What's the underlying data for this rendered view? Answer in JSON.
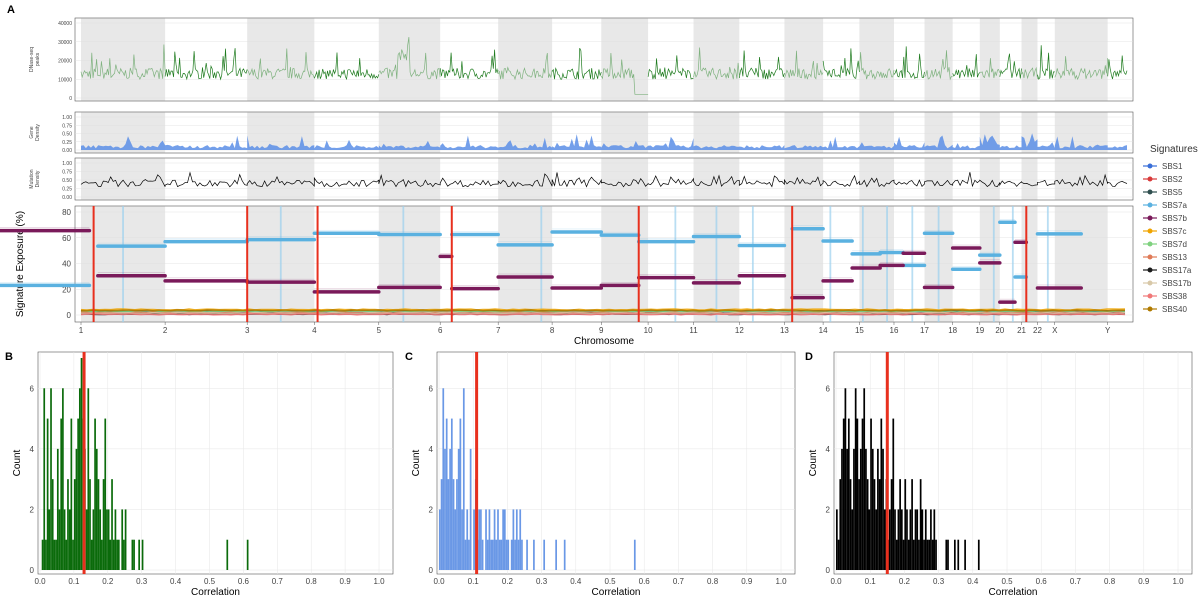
{
  "chart_data": [
    {
      "panel": "A",
      "type": "line",
      "tracks": [
        {
          "id": "dnase",
          "ylabel": "DNase-seq peaks",
          "yticks": [
            0,
            10000,
            20000,
            30000,
            40000
          ],
          "ylim": [
            0,
            45000
          ],
          "color": "#1e7b1e",
          "alt_color": "#7fb27f"
        },
        {
          "id": "gene",
          "ylabel": "Gene Density",
          "yticks": [
            "0.00",
            "0.25",
            "0.50",
            "0.75",
            "1.00"
          ],
          "ylim": [
            0,
            1
          ],
          "color": "#5b8ee6"
        },
        {
          "id": "mut",
          "ylabel": "Mutation Density",
          "yticks": [
            "0.00",
            "0.25",
            "0.50",
            "0.75",
            "1.00"
          ],
          "ylim": [
            0,
            1
          ],
          "color": "#000000"
        }
      ],
      "main": {
        "type": "scatter",
        "xlabel": "Chromosome",
        "ylabel": "Signature Exposure (%)",
        "ylim": [
          0,
          80
        ],
        "yticks": [
          0,
          20,
          40,
          60,
          80
        ],
        "chromosomes": [
          "1",
          "2",
          "3",
          "4",
          "5",
          "6",
          "7",
          "8",
          "9",
          "10",
          "11",
          "12",
          "13",
          "14",
          "15",
          "16",
          "17",
          "18",
          "19",
          "20",
          "21",
          "22",
          "X",
          "Y"
        ],
        "chrom_sizes": [
          248,
          242,
          198,
          190,
          181,
          171,
          159,
          145,
          138,
          134,
          135,
          133,
          114,
          107,
          102,
          90,
          83,
          80,
          59,
          64,
          47,
          51,
          156,
          57
        ],
        "red_breakpoints": [
          1.15,
          3.0,
          4.05,
          6.2,
          9.8,
          13.2,
          21.3
        ],
        "blue_breakpoints": [
          1.5,
          3.5,
          5.4,
          7.8,
          10.6,
          11.5,
          12.3,
          14.2,
          15.1,
          15.8,
          16.6,
          17.5,
          19.7,
          20.6,
          22.6
        ],
        "sbs7a_segments": [
          [
            0.9,
            1.1,
            23
          ],
          [
            1.2,
            2.0,
            53.5
          ],
          [
            2.0,
            3.0,
            57
          ],
          [
            3.0,
            4.0,
            58.5
          ],
          [
            4.0,
            5.0,
            63.5
          ],
          [
            5.0,
            6.0,
            62.5
          ],
          [
            6.2,
            7.0,
            62.5
          ],
          [
            7.0,
            8.0,
            54.5
          ],
          [
            8.0,
            9.0,
            64.5
          ],
          [
            9.0,
            9.8,
            62
          ],
          [
            9.8,
            11.0,
            57
          ],
          [
            11.0,
            12.0,
            61
          ],
          [
            12.0,
            13.0,
            54
          ],
          [
            13.2,
            14.0,
            67
          ],
          [
            14.0,
            14.8,
            57.5
          ],
          [
            14.8,
            15.6,
            47.5
          ],
          [
            15.6,
            16.3,
            48.5
          ],
          [
            16.3,
            17.0,
            38.5
          ],
          [
            17.0,
            18.0,
            63.5
          ],
          [
            18.0,
            19.0,
            35.5
          ],
          [
            19.0,
            20.0,
            46.5
          ],
          [
            20.0,
            20.7,
            72
          ],
          [
            20.7,
            21.3,
            29.5
          ],
          [
            22.0,
            23.5,
            63
          ]
        ],
        "sbs7b_segments": [
          [
            0.9,
            1.1,
            65.5
          ],
          [
            1.2,
            2.0,
            30.5
          ],
          [
            2.0,
            3.0,
            26.5
          ],
          [
            3.0,
            4.0,
            25.5
          ],
          [
            4.0,
            5.0,
            18
          ],
          [
            5.0,
            6.0,
            21.5
          ],
          [
            6.0,
            6.2,
            45.5
          ],
          [
            6.2,
            7.0,
            20.5
          ],
          [
            7.0,
            8.0,
            29.5
          ],
          [
            8.0,
            9.0,
            21
          ],
          [
            9.0,
            9.8,
            23
          ],
          [
            9.8,
            11.0,
            29
          ],
          [
            11.0,
            12.0,
            25
          ],
          [
            12.0,
            13.0,
            30.5
          ],
          [
            13.2,
            14.0,
            13.5
          ],
          [
            14.0,
            14.8,
            26.5
          ],
          [
            14.8,
            15.6,
            36.5
          ],
          [
            15.6,
            16.3,
            38.5
          ],
          [
            16.3,
            17.0,
            48
          ],
          [
            17.0,
            18.0,
            21.5
          ],
          [
            18.0,
            19.0,
            52
          ],
          [
            19.0,
            20.0,
            40.5
          ],
          [
            20.0,
            20.7,
            10
          ],
          [
            20.7,
            21.3,
            56.5
          ],
          [
            22.0,
            23.5,
            21
          ]
        ],
        "background": [
          {
            "name": "SBS1",
            "level": 2.0,
            "color": "#3a6fd8"
          },
          {
            "name": "SBS2",
            "level": 1.0,
            "color": "#d83a3a"
          },
          {
            "name": "SBS5",
            "level": 3.2,
            "color": "#2f4f4f"
          },
          {
            "name": "SBS7c",
            "level": 4.2,
            "color": "#f0a400"
          },
          {
            "name": "SBS7d",
            "level": 2.6,
            "color": "#7fd17f"
          },
          {
            "name": "SBS13",
            "level": 1.8,
            "color": "#e07b58"
          },
          {
            "name": "SBS17a",
            "level": 0.8,
            "color": "#1b1b1b"
          },
          {
            "name": "SBS17b",
            "level": 1.4,
            "color": "#d8c8a8"
          },
          {
            "name": "SBS38",
            "level": 0.5,
            "color": "#f07878"
          },
          {
            "name": "SBS40",
            "level": 3.6,
            "color": "#b07a00"
          }
        ]
      },
      "legend": {
        "title": "Signatures",
        "items": [
          {
            "name": "SBS1",
            "color": "#3a6fd8"
          },
          {
            "name": "SBS2",
            "color": "#d83a3a"
          },
          {
            "name": "SBS5",
            "color": "#2f4f4f"
          },
          {
            "name": "SBS7a",
            "color": "#5ab1e0"
          },
          {
            "name": "SBS7b",
            "color": "#7a1a5a"
          },
          {
            "name": "SBS7c",
            "color": "#f0a400"
          },
          {
            "name": "SBS7d",
            "color": "#7fd17f"
          },
          {
            "name": "SBS13",
            "color": "#e07b58"
          },
          {
            "name": "SBS17a",
            "color": "#1b1b1b"
          },
          {
            "name": "SBS17b",
            "color": "#d8c8a8"
          },
          {
            "name": "SBS38",
            "color": "#f07878"
          },
          {
            "name": "SBS40",
            "color": "#b07a00"
          }
        ],
        "placement": "right"
      }
    },
    {
      "panel": "B",
      "type": "bar",
      "xlabel": "Correlation",
      "ylabel": "Count",
      "xlim": [
        0,
        1.0
      ],
      "ylim": [
        0,
        7
      ],
      "xticks": [
        "0.0",
        "0.1",
        "0.2",
        "0.3",
        "0.4",
        "0.5",
        "0.6",
        "0.7",
        "0.8",
        "0.9",
        "1.0"
      ],
      "yticks": [
        0,
        2,
        4,
        6
      ],
      "bin_width": 0.005,
      "bins_start": 0.005,
      "counts": [
        1,
        6,
        1,
        5,
        2,
        6,
        3,
        1,
        1,
        4,
        2,
        5,
        6,
        2,
        1,
        3,
        2,
        5,
        1,
        3,
        4,
        5,
        6,
        7,
        5,
        4,
        2,
        6,
        3,
        1,
        2,
        5,
        4,
        3,
        2,
        1,
        3,
        5,
        2,
        2,
        1,
        3,
        1,
        2,
        1,
        1,
        0,
        2,
        1,
        2,
        0,
        0,
        0,
        1,
        1,
        0,
        0,
        1,
        0,
        1,
        0,
        0,
        0,
        0,
        0,
        0,
        0,
        0,
        0,
        0,
        0,
        0,
        0,
        0,
        0,
        0,
        0,
        0,
        0,
        0,
        0,
        0,
        0,
        0,
        0,
        0,
        0,
        0,
        0,
        0,
        0,
        0,
        0,
        0,
        0,
        0,
        0,
        0,
        0,
        0,
        0,
        0,
        0,
        0,
        0,
        0,
        0,
        0,
        0,
        1,
        0,
        0,
        0,
        0,
        0,
        0,
        0,
        0,
        0,
        0,
        0,
        1
      ],
      "marker": 0.13,
      "color": "#0b6b0b",
      "marker_color": "#e8301e"
    },
    {
      "panel": "C",
      "type": "bar",
      "xlabel": "Correlation",
      "ylabel": "Count",
      "xlim": [
        0,
        1.0
      ],
      "ylim": [
        0,
        7
      ],
      "xticks": [
        "0.0",
        "0.1",
        "0.2",
        "0.3",
        "0.4",
        "0.5",
        "0.6",
        "0.7",
        "0.8",
        "0.9",
        "1.0"
      ],
      "yticks": [
        0,
        2,
        4,
        6
      ],
      "bin_width": 0.005,
      "bins_start": 0.0,
      "counts": [
        2,
        3,
        6,
        4,
        5,
        3,
        4,
        5,
        3,
        2,
        3,
        4,
        5,
        2,
        6,
        1,
        2,
        1,
        4,
        0,
        2,
        3,
        1,
        2,
        2,
        1,
        0,
        2,
        1,
        2,
        1,
        1,
        2,
        1,
        2,
        1,
        1,
        2,
        2,
        1,
        1,
        0,
        1,
        2,
        1,
        2,
        1,
        2,
        1,
        0,
        0,
        1,
        0,
        0,
        0,
        1,
        0,
        0,
        0,
        0,
        0,
        1,
        0,
        0,
        0,
        0,
        0,
        0,
        1,
        0,
        0,
        0,
        0,
        1,
        0,
        0,
        0,
        0,
        0,
        0,
        0,
        0,
        0,
        0,
        0,
        0,
        0,
        0,
        0,
        0,
        0,
        0,
        0,
        0,
        0,
        0,
        0,
        0,
        0,
        0,
        0,
        0,
        0,
        0,
        0,
        0,
        0,
        0,
        0,
        0,
        0,
        0,
        0,
        0,
        1
      ],
      "marker": 0.11,
      "color": "#6a98e6",
      "marker_color": "#e8301e"
    },
    {
      "panel": "D",
      "type": "bar",
      "xlabel": "Correlation",
      "ylabel": "Count",
      "xlim": [
        0,
        1.0
      ],
      "ylim": [
        0,
        7
      ],
      "xticks": [
        "0.0",
        "0.1",
        "0.2",
        "0.3",
        "0.4",
        "0.5",
        "0.6",
        "0.7",
        "0.8",
        "0.9",
        "1.0"
      ],
      "yticks": [
        0,
        2,
        4,
        6
      ],
      "bin_width": 0.005,
      "bins_start": 0.0,
      "counts": [
        2,
        1,
        3,
        4,
        5,
        6,
        4,
        5,
        3,
        2,
        4,
        6,
        5,
        3,
        4,
        5,
        6,
        4,
        3,
        2,
        5,
        4,
        3,
        2,
        4,
        3,
        5,
        4,
        2,
        3,
        1,
        2,
        3,
        5,
        2,
        1,
        2,
        3,
        2,
        1,
        3,
        2,
        1,
        2,
        3,
        1,
        2,
        2,
        1,
        3,
        2,
        1,
        2,
        1,
        1,
        2,
        1,
        2,
        1,
        0,
        0,
        0,
        0,
        0,
        1,
        1,
        0,
        0,
        0,
        1,
        0,
        1,
        0,
        0,
        0,
        1,
        0,
        0,
        0,
        0,
        0,
        0,
        0,
        1
      ],
      "marker": 0.15,
      "color": "#000000",
      "marker_color": "#e8301e"
    }
  ]
}
